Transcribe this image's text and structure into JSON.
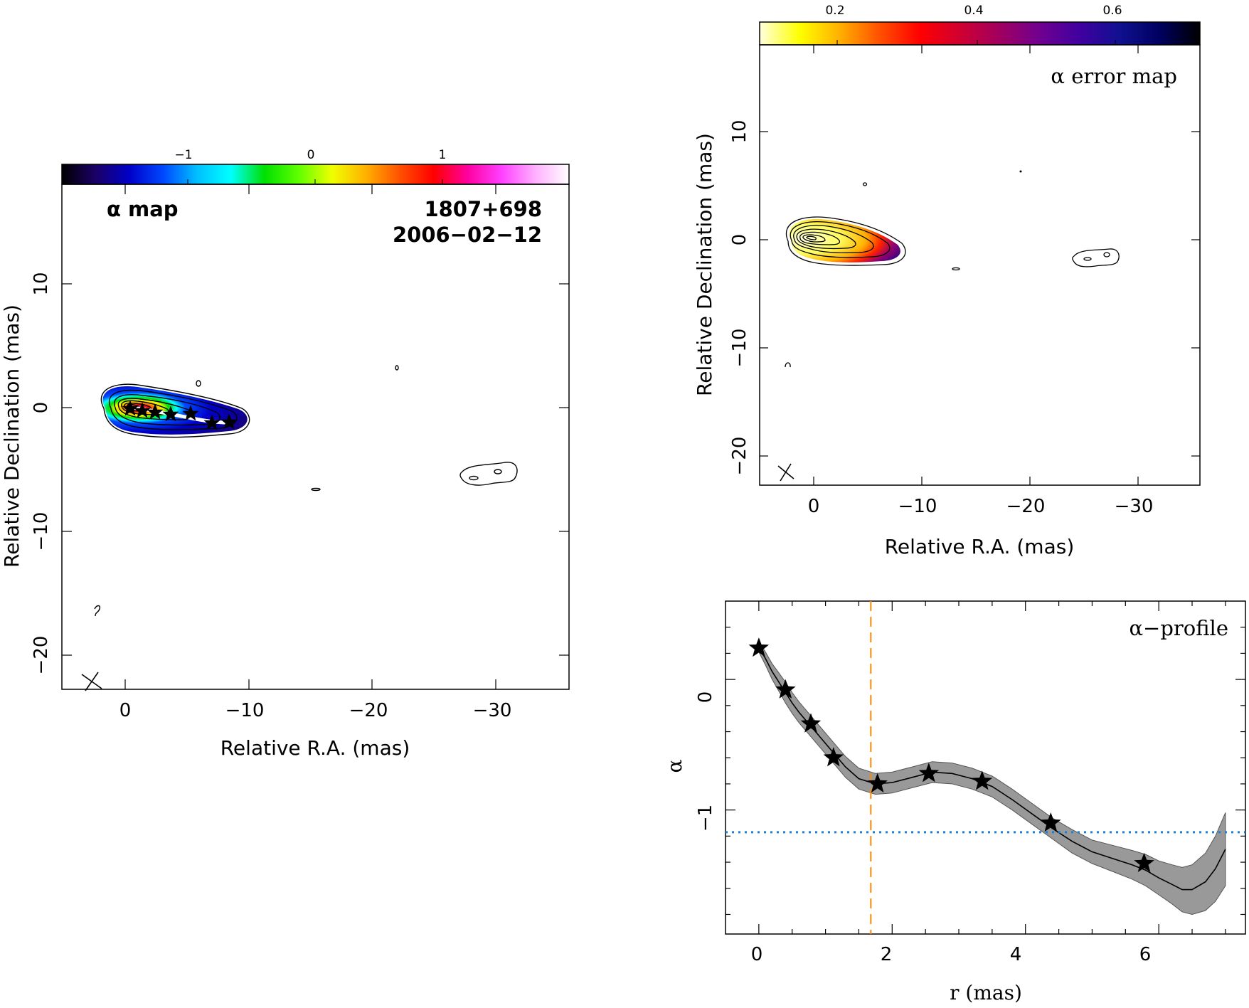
{
  "colors": {
    "alpha_colormap": [
      "#000000",
      "#1a0066",
      "#0000c8",
      "#0048ff",
      "#00c0ff",
      "#00ffff",
      "#00e000",
      "#60ff00",
      "#f0ff00",
      "#ffb000",
      "#ff5000",
      "#ff0000",
      "#ff00a0",
      "#ff40ff",
      "#ffb0ff",
      "#ffffff"
    ],
    "error_colormap": [
      "#ffffe0",
      "#ffff00",
      "#ffb000",
      "#ff5000",
      "#ff0000",
      "#d00030",
      "#a00060",
      "#700090",
      "#4000a0",
      "#101090",
      "#000060",
      "#000000"
    ],
    "band_fill": "#999999",
    "vline": "#ff8800",
    "hline": "#1e7fd8"
  },
  "panel_a": {
    "cb_ticks": [
      "−1",
      "0",
      "1"
    ],
    "label_left": "α map",
    "source": "1807+698",
    "date": "2006−02−12",
    "x_ticks": [
      "0",
      "−10",
      "−20",
      "−30"
    ],
    "y_ticks": [
      "10",
      "0",
      "−10",
      "−20"
    ],
    "xlabel": "Relative R.A. (mas)",
    "ylabel": "Relative Declination (mas)"
  },
  "panel_b": {
    "cb_ticks": [
      "0.2",
      "0.4",
      "0.6"
    ],
    "label": "α error map",
    "x_ticks": [
      "0",
      "−10",
      "−20",
      "−30"
    ],
    "y_ticks": [
      "10",
      "0",
      "−10",
      "−20"
    ],
    "xlabel": "Relative R.A. (mas)",
    "ylabel": "Relative Declination (mas)"
  },
  "chart_data": {
    "type": "line",
    "title": "α−profile",
    "xlabel": "r (mas)",
    "ylabel": "α",
    "xlim": [
      -0.5,
      7.3
    ],
    "ylim": [
      -1.95,
      0.6
    ],
    "x_ticks": [
      "0",
      "2",
      "4",
      "6"
    ],
    "y_ticks": [
      "0",
      "−1"
    ],
    "grid": false,
    "series": [
      {
        "x": [
          0.0,
          0.1,
          0.2,
          0.3,
          0.4,
          0.5,
          0.6,
          0.75,
          0.9,
          1.1,
          1.3,
          1.5,
          1.75,
          2.0,
          2.3,
          2.6,
          2.9,
          3.2,
          3.5,
          3.8,
          4.1,
          4.4,
          4.7,
          5.0,
          5.3,
          5.6,
          5.8,
          6.0,
          6.2,
          6.35,
          6.5,
          6.7,
          6.85,
          7.0
        ],
        "y": [
          0.25,
          0.16,
          0.06,
          -0.02,
          -0.1,
          -0.18,
          -0.25,
          -0.34,
          -0.43,
          -0.55,
          -0.67,
          -0.76,
          -0.8,
          -0.79,
          -0.75,
          -0.71,
          -0.72,
          -0.76,
          -0.82,
          -0.92,
          -1.03,
          -1.14,
          -1.24,
          -1.32,
          -1.37,
          -1.42,
          -1.46,
          -1.52,
          -1.57,
          -1.61,
          -1.61,
          -1.55,
          -1.45,
          -1.3
        ]
      }
    ],
    "band_halfwidth": [
      0.04,
      0.05,
      0.06,
      0.07,
      0.08,
      0.08,
      0.08,
      0.08,
      0.08,
      0.08,
      0.08,
      0.08,
      0.08,
      0.08,
      0.08,
      0.08,
      0.08,
      0.08,
      0.08,
      0.08,
      0.08,
      0.08,
      0.09,
      0.09,
      0.1,
      0.11,
      0.12,
      0.13,
      0.15,
      0.17,
      0.19,
      0.22,
      0.25,
      0.28
    ],
    "markers": {
      "x": [
        0.0,
        0.4,
        0.78,
        1.12,
        1.78,
        2.55,
        3.35,
        4.38,
        5.78
      ],
      "y": [
        0.24,
        -0.08,
        -0.34,
        -0.6,
        -0.8,
        -0.72,
        -0.78,
        -1.1,
        -1.41
      ]
    },
    "vline_x": 1.68,
    "hline_y": -1.17
  }
}
